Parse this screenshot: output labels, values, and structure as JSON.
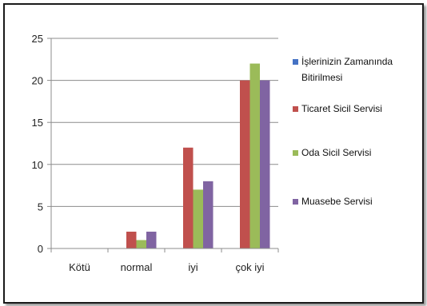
{
  "chart_data": {
    "type": "bar",
    "title": "",
    "xlabel": "",
    "ylabel": "",
    "categories": [
      "Kötü",
      "normal",
      "iyi",
      "çok iyi"
    ],
    "ylim": [
      0,
      25
    ],
    "yticks": [
      0,
      5,
      10,
      15,
      20,
      25
    ],
    "grid": true,
    "legend_position": "right",
    "series": [
      {
        "name": "İşlerinizin Zamanında Bitirilmesi",
        "color": "#4472C4",
        "values": [
          0,
          0,
          0,
          0
        ]
      },
      {
        "name": "Ticaret Sicil Servisi",
        "color": "#C0504D",
        "values": [
          0,
          2,
          12,
          20
        ]
      },
      {
        "name": "Oda Sicil Servisi",
        "color": "#9BBB59",
        "values": [
          0,
          1,
          7,
          22
        ]
      },
      {
        "name": "Muasebe Servisi",
        "color": "#8064A2",
        "values": [
          0,
          2,
          8,
          20
        ]
      }
    ]
  }
}
